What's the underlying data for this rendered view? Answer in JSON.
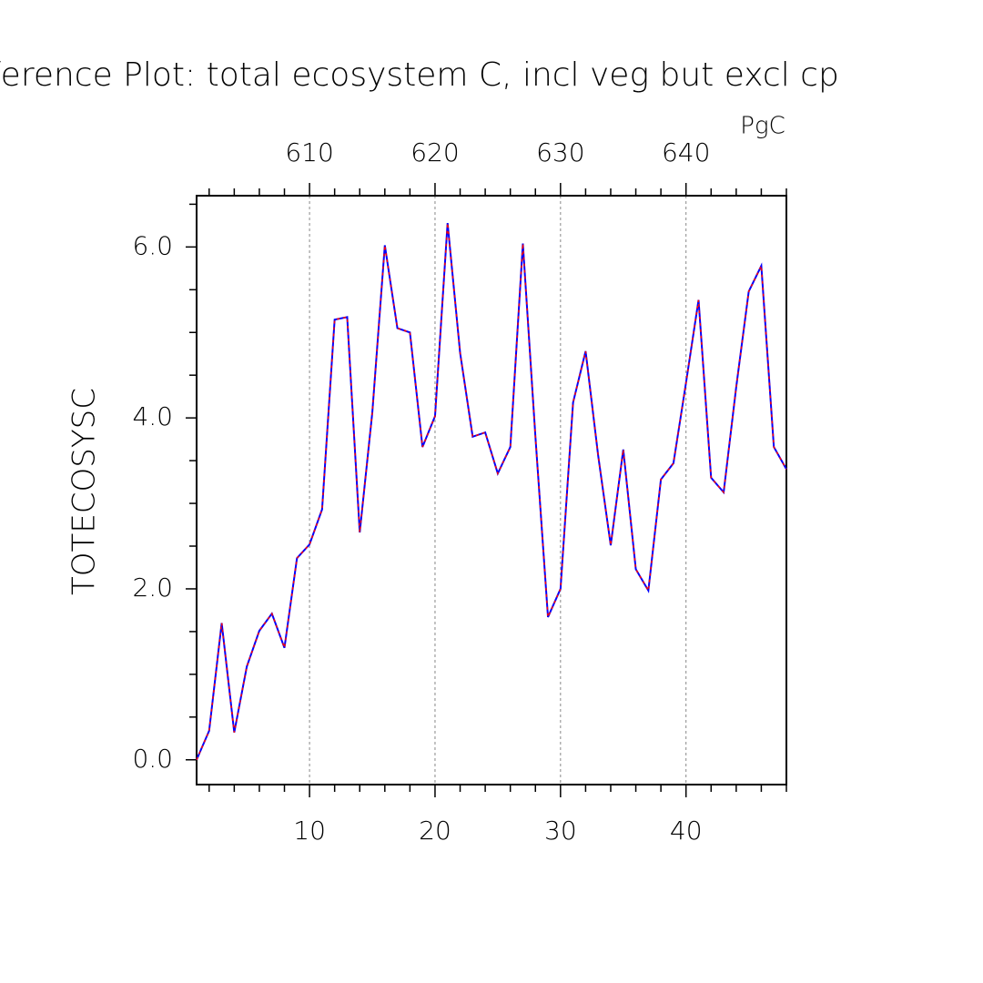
{
  "chart_data": {
    "type": "line",
    "title": "ference Plot: total ecosystem C, incl veg but excl cp",
    "ylabel": "TOTECOSYSC",
    "x2label": "PgC",
    "x": [
      1,
      2,
      3,
      4,
      5,
      6,
      7,
      8,
      9,
      10,
      11,
      12,
      13,
      14,
      15,
      16,
      17,
      18,
      19,
      20,
      21,
      22,
      23,
      24,
      25,
      26,
      27,
      28,
      29,
      30,
      31,
      32,
      33,
      34,
      35,
      36,
      37,
      38,
      39,
      40,
      41,
      42,
      43,
      44,
      45,
      46,
      47,
      48
    ],
    "series": [
      {
        "color": "#0000ff",
        "dash_color": "#ff0000",
        "values": [
          0.0,
          0.34,
          1.6,
          0.32,
          1.09,
          1.51,
          1.71,
          1.31,
          2.36,
          2.52,
          2.93,
          5.15,
          5.18,
          2.66,
          4.06,
          6.02,
          5.05,
          5.0,
          3.66,
          4.02,
          6.28,
          4.76,
          3.78,
          3.83,
          3.35,
          3.66,
          6.04,
          3.78,
          1.67,
          2.0,
          4.18,
          4.78,
          3.56,
          2.51,
          3.63,
          2.23,
          1.98,
          3.28,
          3.47,
          4.41,
          5.38,
          3.3,
          3.13,
          4.36,
          5.48,
          5.78,
          3.66,
          3.4
        ]
      }
    ],
    "xlim": [
      1,
      48
    ],
    "xticks": [
      10,
      20,
      30,
      40
    ],
    "xtick_color": "#ff2020",
    "xminor": [
      2,
      4,
      6,
      8,
      12,
      14,
      16,
      18,
      22,
      24,
      26,
      28,
      32,
      34,
      36,
      38,
      42,
      44,
      46,
      48
    ],
    "x2lim": [
      601,
      648
    ],
    "x2ticks": [
      610,
      620,
      630,
      640
    ],
    "x2tick_color": "#2020ff",
    "x2minor": [
      602,
      604,
      606,
      608,
      612,
      614,
      616,
      618,
      622,
      624,
      626,
      628,
      632,
      634,
      636,
      638,
      642,
      644,
      646,
      648
    ],
    "ylim": [
      -0.29,
      6.6
    ],
    "yticks": [
      {
        "value": 0,
        "label": "0.0"
      },
      {
        "value": 2,
        "label": "2.0"
      },
      {
        "value": 4,
        "label": "4.0"
      },
      {
        "value": 6,
        "label": "6.0"
      }
    ],
    "yminor": [
      0.5,
      1,
      1.5,
      2.5,
      3,
      3.5,
      4.5,
      5,
      5.5,
      6.5
    ],
    "grid": true
  }
}
